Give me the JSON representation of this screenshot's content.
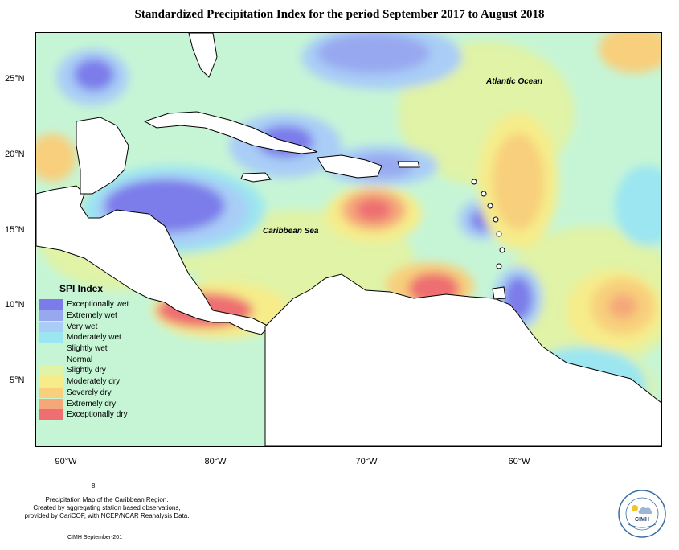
{
  "title": "Standardized Precipitation Index for the period September 2017 to August 2018",
  "map_labels": {
    "atlantic": "Atlantic Ocean",
    "caribbean": "Caribbean Sea"
  },
  "lat_ticks": [
    "25°N",
    "20°N",
    "15°N",
    "10°N",
    "5°N"
  ],
  "lon_ticks": [
    "90°W",
    "80°W",
    "70°W",
    "60°W"
  ],
  "legend": {
    "title": "SPI Index",
    "items": [
      {
        "label": "Exceptionally wet",
        "color": "#7b7bea"
      },
      {
        "label": "Extremely wet",
        "color": "#98a8f0"
      },
      {
        "label": "Very wet",
        "color": "#a9cdf7"
      },
      {
        "label": "Moderately wet",
        "color": "#9be6f0"
      },
      {
        "label": "Slightly wet",
        "color": "#c6f5d6"
      },
      {
        "label": "Normal",
        "color": ""
      },
      {
        "label": "Slightly dry",
        "color": "#e0f3a6"
      },
      {
        "label": "Moderately dry",
        "color": "#f6ec8a"
      },
      {
        "label": "Severely dry",
        "color": "#f8cf7c"
      },
      {
        "label": "Extremely dry",
        "color": "#f5a77a"
      },
      {
        "label": "Exceptionally dry",
        "color": "#ee6e72"
      }
    ]
  },
  "footer": {
    "marker": "8",
    "line1": "Precipitation Map of the Caribbean Region.",
    "line2": "Created by aggregating station based observations,",
    "line3": "provided by CariCOF, with NCEP/NCAR Reanalysis Data.",
    "credit": "CIMH September-201"
  },
  "logo": {
    "text": "CIMH"
  }
}
